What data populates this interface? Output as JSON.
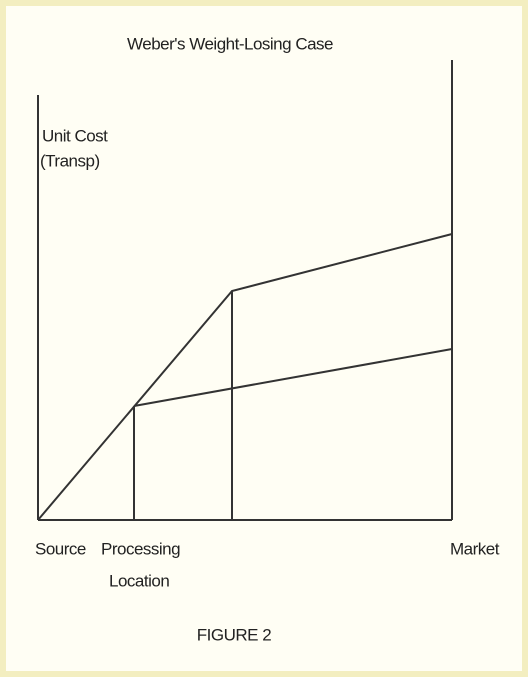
{
  "title": "Weber's Weight-Losing Case",
  "y_axis_label": [
    "Unit Cost",
    "(Transp)"
  ],
  "x_labels": {
    "source": "Source",
    "processing": [
      "Processing",
      "Location"
    ],
    "market": "Market"
  },
  "caption": "FIGURE 2"
}
